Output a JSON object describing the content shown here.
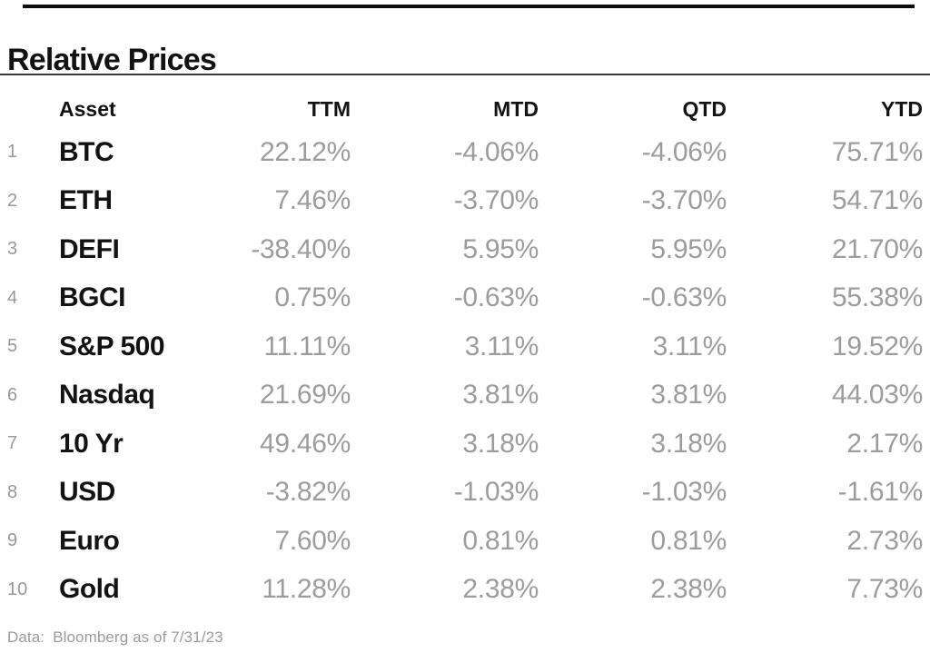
{
  "title": "Relative Prices",
  "footer": {
    "label": "Data:",
    "source": "Bloomberg as of 7/31/23"
  },
  "colors": {
    "text": "#121212",
    "muted": "#9c9c9c",
    "rule": "#383838",
    "top_border": "#0b0b0b",
    "background": "#ffffff"
  },
  "chart_data": {
    "type": "table",
    "title": "Relative Prices",
    "columns": [
      "Asset",
      "TTM",
      "MTD",
      "QTD",
      "YTD"
    ],
    "rows": [
      {
        "rank": "1",
        "asset": "BTC",
        "ttm": "22.12%",
        "mtd": "-4.06%",
        "qtd": "-4.06%",
        "ytd": "75.71%"
      },
      {
        "rank": "2",
        "asset": "ETH",
        "ttm": "7.46%",
        "mtd": "-3.70%",
        "qtd": "-3.70%",
        "ytd": "54.71%"
      },
      {
        "rank": "3",
        "asset": "DEFI",
        "ttm": "-38.40%",
        "mtd": "5.95%",
        "qtd": "5.95%",
        "ytd": "21.70%"
      },
      {
        "rank": "4",
        "asset": "BGCI",
        "ttm": "0.75%",
        "mtd": "-0.63%",
        "qtd": "-0.63%",
        "ytd": "55.38%"
      },
      {
        "rank": "5",
        "asset": "S&P 500",
        "ttm": "11.11%",
        "mtd": "3.11%",
        "qtd": "3.11%",
        "ytd": "19.52%"
      },
      {
        "rank": "6",
        "asset": "Nasdaq",
        "ttm": "21.69%",
        "mtd": "3.81%",
        "qtd": "3.81%",
        "ytd": "44.03%"
      },
      {
        "rank": "7",
        "asset": "10 Yr",
        "ttm": "49.46%",
        "mtd": "3.18%",
        "qtd": "3.18%",
        "ytd": "2.17%"
      },
      {
        "rank": "8",
        "asset": "USD",
        "ttm": "-3.82%",
        "mtd": "-1.03%",
        "qtd": "-1.03%",
        "ytd": "-1.61%"
      },
      {
        "rank": "9",
        "asset": "Euro",
        "ttm": "7.60%",
        "mtd": "0.81%",
        "qtd": "0.81%",
        "ytd": "2.73%"
      },
      {
        "rank": "10",
        "asset": "Gold",
        "ttm": "11.28%",
        "mtd": "2.38%",
        "qtd": "2.38%",
        "ytd": "7.73%"
      }
    ]
  }
}
